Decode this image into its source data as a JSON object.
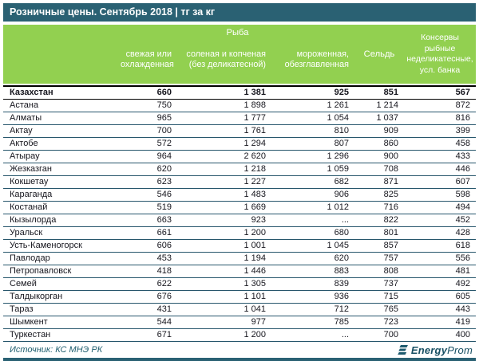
{
  "title": "Розничные цены. Сентябрь 2018 | тг за кг",
  "source": "Источник: КС МНЭ РК",
  "logo": {
    "bold": "Energy",
    "regular": "Prom",
    "icon": "energyprom-stripes-icon"
  },
  "colors": {
    "teal": "#2a6173",
    "green": "#92d050",
    "row_border": "#27566c"
  },
  "chart_data": {
    "type": "table",
    "title": "Розничные цены. Сентябрь 2018 | тг за кг",
    "unit": "тг за кг",
    "column_group_fish": "Рыба",
    "columns": [
      "свежая или охлажденная",
      "соленая и копченая (без деликатесной)",
      "мороженная, обезглавленная",
      "Сельдь",
      "Консервы рыбные неделикатесные, усл. банка"
    ],
    "rows": [
      {
        "city": "Казахстан",
        "values": [
          "660",
          "1 381",
          "925",
          "851",
          "567"
        ],
        "total": true
      },
      {
        "city": "Астана",
        "values": [
          "750",
          "1 898",
          "1 261",
          "1 214",
          "872"
        ]
      },
      {
        "city": "Алматы",
        "values": [
          "965",
          "1 777",
          "1 054",
          "1 037",
          "816"
        ]
      },
      {
        "city": "Актау",
        "values": [
          "700",
          "1 761",
          "810",
          "909",
          "399"
        ]
      },
      {
        "city": "Актобе",
        "values": [
          "572",
          "1 294",
          "807",
          "860",
          "458"
        ]
      },
      {
        "city": "Атырау",
        "values": [
          "964",
          "2 620",
          "1 296",
          "900",
          "433"
        ]
      },
      {
        "city": "Жезказган",
        "values": [
          "620",
          "1 218",
          "1 059",
          "708",
          "446"
        ]
      },
      {
        "city": "Кокшетау",
        "values": [
          "623",
          "1 227",
          "682",
          "871",
          "607"
        ]
      },
      {
        "city": "Караганда",
        "values": [
          "546",
          "1 483",
          "906",
          "825",
          "598"
        ]
      },
      {
        "city": "Костанай",
        "values": [
          "519",
          "1 669",
          "1 012",
          "716",
          "494"
        ]
      },
      {
        "city": "Кызылорда",
        "values": [
          "663",
          "923",
          "...",
          "822",
          "452"
        ]
      },
      {
        "city": "Уральск",
        "values": [
          "661",
          "1 200",
          "680",
          "801",
          "428"
        ]
      },
      {
        "city": "Усть-Каменогорск",
        "values": [
          "606",
          "1 001",
          "1 045",
          "857",
          "618"
        ]
      },
      {
        "city": "Павлодар",
        "values": [
          "453",
          "1 194",
          "620",
          "757",
          "556"
        ]
      },
      {
        "city": "Петропавловск",
        "values": [
          "418",
          "1 446",
          "883",
          "808",
          "481"
        ]
      },
      {
        "city": "Семей",
        "values": [
          "622",
          "1 305",
          "839",
          "737",
          "492"
        ]
      },
      {
        "city": "Талдыкорган",
        "values": [
          "676",
          "1 101",
          "936",
          "715",
          "605"
        ]
      },
      {
        "city": "Тараз",
        "values": [
          "431",
          "1 041",
          "712",
          "765",
          "443"
        ]
      },
      {
        "city": "Шымкент",
        "values": [
          "544",
          "977",
          "785",
          "723",
          "419"
        ]
      },
      {
        "city": "Туркестан",
        "values": [
          "671",
          "1 200",
          "...",
          "700",
          "400"
        ]
      }
    ]
  }
}
